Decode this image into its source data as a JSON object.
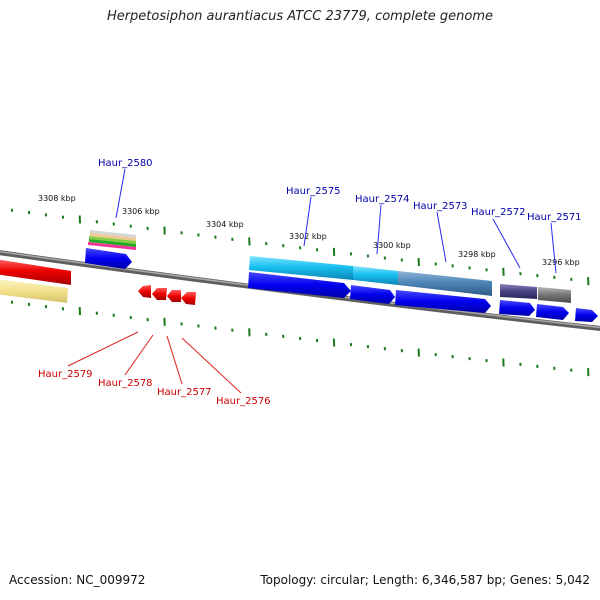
{
  "title": "Herpetosiphon aurantiacus ATCC 23779, complete genome",
  "footer": {
    "accession": "Accession: NC_009972",
    "topology": "Topology: circular; Length: 6,346,587 bp; Genes: 5,042"
  },
  "colors": {
    "backbone": "#7a7a7a",
    "forward_label": "#0000aa",
    "reverse_label": "#cc0000",
    "tick": "#1a7a1a",
    "cds_forward": "#0000ee",
    "cds_reverse": "#ee0000"
  },
  "kbp_labels": [
    "3308 kbp",
    "3306 kbp",
    "3304 kbp",
    "3302 kbp",
    "3300 kbp",
    "3298 kbp",
    "3296 kbp"
  ],
  "genes_forward": [
    {
      "id": "Haur_2580",
      "label": "Haur_2580"
    },
    {
      "id": "Haur_2575",
      "label": "Haur_2575"
    },
    {
      "id": "Haur_2574",
      "label": "Haur_2574"
    },
    {
      "id": "Haur_2573",
      "label": "Haur_2573"
    },
    {
      "id": "Haur_2572",
      "label": "Haur_2572"
    },
    {
      "id": "Haur_2571",
      "label": "Haur_2571"
    }
  ],
  "genes_reverse": [
    {
      "id": "Haur_2579",
      "label": "Haur_2579"
    },
    {
      "id": "Haur_2578",
      "label": "Haur_2578"
    },
    {
      "id": "Haur_2577",
      "label": "Haur_2577"
    },
    {
      "id": "Haur_2576",
      "label": "Haur_2576"
    }
  ]
}
